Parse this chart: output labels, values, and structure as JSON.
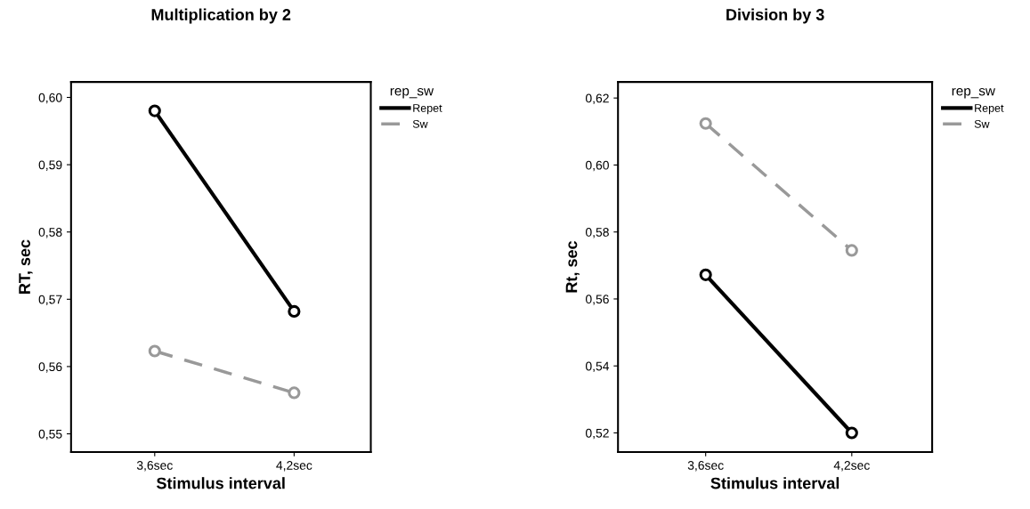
{
  "chart_data": [
    {
      "type": "line",
      "title": "Multiplication by 2",
      "xlabel": "Stimulus interval",
      "ylabel": "RT, sec",
      "legend_title": "rep_sw",
      "legend": "right",
      "marker": "circle",
      "categories": [
        "3,6sec",
        "4,2sec"
      ],
      "ylim": [
        0.5473,
        0.6023
      ],
      "yticks": [
        {
          "value": 0.55,
          "label": "0,55"
        },
        {
          "value": 0.56,
          "label": "0,56"
        },
        {
          "value": 0.57,
          "label": "0,57"
        },
        {
          "value": 0.58,
          "label": "0,58"
        },
        {
          "value": 0.59,
          "label": "0,59"
        },
        {
          "value": 0.6,
          "label": "0,60"
        }
      ],
      "series": [
        {
          "name": "Repet",
          "color": "#000000",
          "line_style": "solid",
          "values": [
            0.598,
            0.5682
          ]
        },
        {
          "name": "Sw",
          "color": "#999999",
          "line_style": "dashed",
          "values": [
            0.5623,
            0.5561
          ]
        }
      ]
    },
    {
      "type": "line",
      "title": "Division by 3",
      "xlabel": "Stimulus interval",
      "ylabel": "Rt, sec",
      "legend_title": "rep_sw",
      "legend": "right",
      "marker": "circle",
      "categories": [
        "3,6sec",
        "4,2sec"
      ],
      "ylim": [
        0.5143,
        0.6248
      ],
      "yticks": [
        {
          "value": 0.52,
          "label": "0,52"
        },
        {
          "value": 0.54,
          "label": "0,54"
        },
        {
          "value": 0.56,
          "label": "0,56"
        },
        {
          "value": 0.58,
          "label": "0,58"
        },
        {
          "value": 0.6,
          "label": "0,60"
        },
        {
          "value": 0.62,
          "label": "0,62"
        }
      ],
      "series": [
        {
          "name": "Repet",
          "color": "#000000",
          "line_style": "solid",
          "values": [
            0.5672,
            0.52
          ]
        },
        {
          "name": "Sw",
          "color": "#999999",
          "line_style": "dashed",
          "values": [
            0.6124,
            0.5745
          ]
        }
      ]
    }
  ]
}
